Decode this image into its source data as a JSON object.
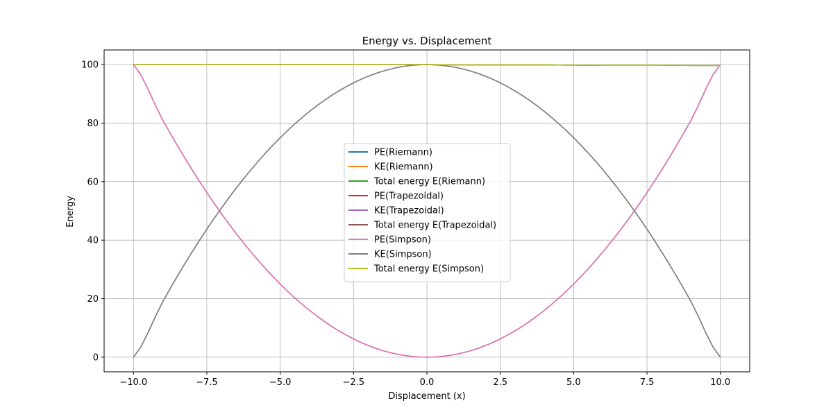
{
  "chart_data": {
    "type": "line",
    "title": "Energy vs. Displacement",
    "xlabel": "Displacement (x)",
    "ylabel": "Energy",
    "xlim": [
      -11,
      11
    ],
    "ylim": [
      -5,
      105
    ],
    "xticks": [
      -10,
      -7.5,
      -5,
      -2.5,
      0,
      2.5,
      5,
      7.5,
      10
    ],
    "xtick_labels": [
      "−10.0",
      "−7.5",
      "−5.0",
      "−2.5",
      "0.0",
      "2.5",
      "5.0",
      "7.5",
      "10.0"
    ],
    "yticks": [
      0,
      20,
      40,
      60,
      80,
      100
    ],
    "ytick_labels": [
      "0",
      "20",
      "40",
      "60",
      "80",
      "100"
    ],
    "grid": true,
    "legend_position": "center",
    "x": [
      -10,
      -9,
      -8,
      -7,
      -6,
      -5,
      -4,
      -3,
      -2,
      -1,
      0,
      1,
      2,
      3,
      4,
      5,
      6,
      7,
      8,
      9,
      10
    ],
    "series": [
      {
        "name": "PE(Riemann)",
        "color": "#1f77b4",
        "values": [
          100,
          81,
          64,
          49,
          36,
          25,
          16,
          9,
          4,
          1,
          0,
          1,
          4,
          9,
          16,
          25,
          36,
          49,
          64,
          81,
          100
        ]
      },
      {
        "name": "KE(Riemann)",
        "color": "#ff7f0e",
        "values": [
          0,
          19,
          36,
          51,
          64,
          75,
          84,
          91,
          96,
          99,
          100,
          99,
          96,
          91,
          84,
          75,
          64,
          51,
          36,
          19,
          0
        ]
      },
      {
        "name": "Total energy E(Riemann)",
        "color": "#2ca02c",
        "values": [
          100,
          100,
          100,
          100,
          100,
          100,
          100,
          100,
          100,
          100,
          100,
          99.9,
          99.9,
          99.9,
          99.9,
          99.8,
          99.8,
          99.8,
          99.8,
          99.7,
          99.7
        ]
      },
      {
        "name": "PE(Trapezoidal)",
        "color": "#d62728",
        "values": [
          100,
          81,
          64,
          49,
          36,
          25,
          16,
          9,
          4,
          1,
          0,
          1,
          4,
          9,
          16,
          25,
          36,
          49,
          64,
          81,
          100
        ]
      },
      {
        "name": "KE(Trapezoidal)",
        "color": "#9467bd",
        "values": [
          0,
          19,
          36,
          51,
          64,
          75,
          84,
          91,
          96,
          99,
          100,
          99,
          96,
          91,
          84,
          75,
          64,
          51,
          36,
          19,
          0
        ]
      },
      {
        "name": "Total energy E(Trapezoidal)",
        "color": "#8c564b",
        "values": [
          100,
          100,
          100,
          100,
          100,
          100,
          100,
          100,
          100,
          100,
          100,
          99.9,
          99.9,
          99.9,
          99.9,
          99.8,
          99.8,
          99.8,
          99.8,
          99.7,
          99.7
        ]
      },
      {
        "name": "PE(Simpson)",
        "color": "#e377c2",
        "values": [
          100,
          81,
          64,
          49,
          36,
          25,
          16,
          9,
          4,
          1,
          0,
          1,
          4,
          9,
          16,
          25,
          36,
          49,
          64,
          81,
          100
        ]
      },
      {
        "name": "KE(Simpson)",
        "color": "#7f7f7f",
        "values": [
          0,
          19,
          36,
          51,
          64,
          75,
          84,
          91,
          96,
          99,
          100,
          99,
          96,
          91,
          84,
          75,
          64,
          51,
          36,
          19,
          0
        ]
      },
      {
        "name": "Total energy E(Simpson)",
        "color": "#bcbd22",
        "values": [
          100,
          100,
          100,
          100,
          100,
          100,
          100,
          100,
          100,
          100,
          100,
          99.9,
          99.9,
          99.9,
          99.9,
          99.8,
          99.8,
          99.8,
          99.8,
          99.7,
          99.7
        ]
      }
    ]
  }
}
